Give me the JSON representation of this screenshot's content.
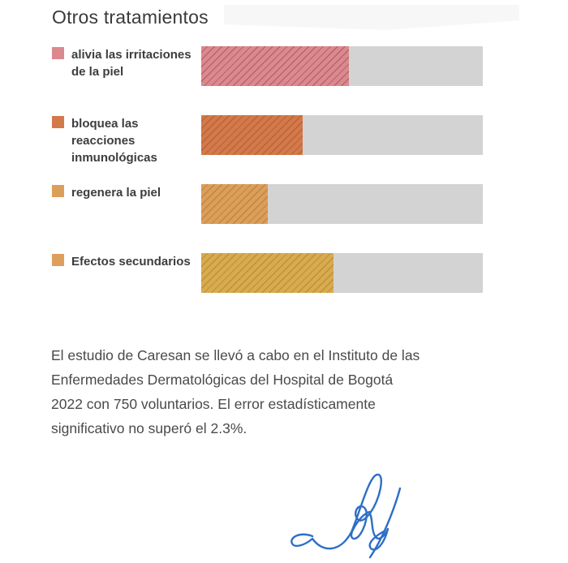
{
  "page": {
    "background": "#ffffff"
  },
  "title": "Otros tratamientos",
  "chart_data": {
    "type": "bar",
    "orientation": "horizontal",
    "title": "Otros tratamientos",
    "categories": [
      "alivia las irritaciones de la piel",
      "bloquea las reacciones inmunológicas",
      "regenera la piel",
      "Efectos secundarios"
    ],
    "values": [
      52.5,
      36,
      23.5,
      47
    ],
    "value_scale": "percent of full track (estimated, no axis shown)",
    "xlim": [
      0,
      100
    ],
    "grid": false,
    "axis_ticks_visible": false,
    "legend_position": "left",
    "bar_style": "diagonal-hatch",
    "track_color": "#d3d3d3",
    "bar_colors": [
      "#db898e",
      "#d3794a",
      "#dc9f5a",
      "#d7ab4e"
    ],
    "hatch_colors": [
      "rgba(153,70,76,0.55)",
      "rgba(164,82,42,0.55)",
      "rgba(172,110,48,0.55)",
      "rgba(166,124,42,0.55)"
    ],
    "legend_colors": [
      "#db898e",
      "#d3794a",
      "#dc9f5a",
      "#dda05c"
    ]
  },
  "footnote": {
    "lines": [
      "El estudio de Caresan se llevó a cabo en el Instituto de las",
      "Enfermedades Dermatológicas del Hospital de Bogotá",
      "2022 con 750 voluntarios. El error estadísticamente",
      "significativo no superó el 2.3%."
    ],
    "full_text": "El estudio de Caresan se llevó a cabo en el Instituto de las Enfermedades Dermatológicas del Hospital de Bogotá 2022 con 750 voluntarios. El error estadísticamente significativo no superó el 2.3%."
  },
  "signature": {
    "description": "handwritten blue ink signature",
    "color": "#2e6fc6"
  }
}
